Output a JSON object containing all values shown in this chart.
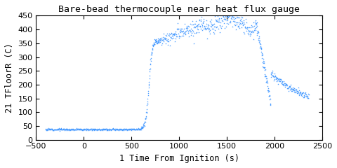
{
  "title": "Bare-bead thermocouple near heat flux gauge",
  "xlabel": "1 Time From Ignition (s)",
  "ylabel": "21 TFloorR (C)",
  "xlim": [
    -500,
    2500
  ],
  "ylim": [
    0,
    450
  ],
  "xticks": [
    -500,
    0,
    500,
    1000,
    1500,
    2000,
    2500
  ],
  "yticks": [
    0,
    50,
    100,
    150,
    200,
    250,
    300,
    350,
    400,
    450
  ],
  "marker_color": "#4499ff",
  "marker": "*",
  "markersize": 1.8,
  "background_color": "#ffffff",
  "title_fontsize": 9.5,
  "label_fontsize": 8.5,
  "tick_fontsize": 8,
  "font_family": "monospace"
}
